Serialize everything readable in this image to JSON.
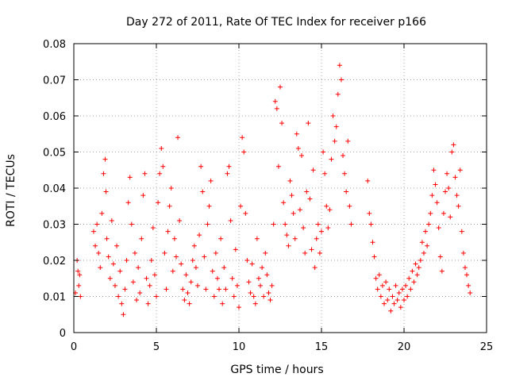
{
  "chart_data": {
    "type": "scatter",
    "title": "Day 272 of 2011, Rate Of TEC Index for receiver p166",
    "xlabel": "GPS time / hours",
    "ylabel": "ROTI / TECUs",
    "xlim": [
      0,
      25
    ],
    "ylim": [
      0,
      0.08
    ],
    "xticks": [
      "0",
      "5",
      "10",
      "15",
      "20",
      "25"
    ],
    "yticks": [
      "0",
      "0.01",
      "0.02",
      "0.03",
      "0.04",
      "0.05",
      "0.06",
      "0.07",
      "0.08"
    ],
    "grid": true,
    "marker": "+",
    "color": "#ff0000",
    "series": [
      {
        "points": [
          [
            0.1,
            0.011
          ],
          [
            0.2,
            0.02
          ],
          [
            0.25,
            0.017
          ],
          [
            0.3,
            0.013
          ],
          [
            0.35,
            0.016
          ],
          [
            0.4,
            0.01
          ],
          [
            1.2,
            0.028
          ],
          [
            1.3,
            0.024
          ],
          [
            1.4,
            0.03
          ],
          [
            1.5,
            0.022
          ],
          [
            1.6,
            0.018
          ],
          [
            1.7,
            0.033
          ],
          [
            1.8,
            0.044
          ],
          [
            1.9,
            0.048
          ],
          [
            1.95,
            0.039
          ],
          [
            2.0,
            0.026
          ],
          [
            2.1,
            0.021
          ],
          [
            2.2,
            0.015
          ],
          [
            2.3,
            0.031
          ],
          [
            2.4,
            0.019
          ],
          [
            2.5,
            0.013
          ],
          [
            2.6,
            0.024
          ],
          [
            2.7,
            0.01
          ],
          [
            2.8,
            0.017
          ],
          [
            2.9,
            0.008
          ],
          [
            3.0,
            0.005
          ],
          [
            3.1,
            0.012
          ],
          [
            3.2,
            0.02
          ],
          [
            3.3,
            0.036
          ],
          [
            3.4,
            0.043
          ],
          [
            3.5,
            0.03
          ],
          [
            3.6,
            0.014
          ],
          [
            3.7,
            0.022
          ],
          [
            3.8,
            0.009
          ],
          [
            3.9,
            0.018
          ],
          [
            4.0,
            0.011
          ],
          [
            4.1,
            0.026
          ],
          [
            4.2,
            0.038
          ],
          [
            4.3,
            0.044
          ],
          [
            4.4,
            0.015
          ],
          [
            4.5,
            0.008
          ],
          [
            4.6,
            0.013
          ],
          [
            4.7,
            0.02
          ],
          [
            4.8,
            0.029
          ],
          [
            4.9,
            0.016
          ],
          [
            5.0,
            0.01
          ],
          [
            5.1,
            0.036
          ],
          [
            5.2,
            0.044
          ],
          [
            5.3,
            0.051
          ],
          [
            5.4,
            0.046
          ],
          [
            5.5,
            0.022
          ],
          [
            5.6,
            0.012
          ],
          [
            5.7,
            0.028
          ],
          [
            5.8,
            0.035
          ],
          [
            5.9,
            0.04
          ],
          [
            6.0,
            0.017
          ],
          [
            6.1,
            0.026
          ],
          [
            6.2,
            0.021
          ],
          [
            6.3,
            0.054
          ],
          [
            6.4,
            0.031
          ],
          [
            6.5,
            0.019
          ],
          [
            6.6,
            0.012
          ],
          [
            6.7,
            0.009
          ],
          [
            6.8,
            0.016
          ],
          [
            6.9,
            0.011
          ],
          [
            7.0,
            0.008
          ],
          [
            7.1,
            0.014
          ],
          [
            7.2,
            0.02
          ],
          [
            7.3,
            0.024
          ],
          [
            7.4,
            0.018
          ],
          [
            7.5,
            0.013
          ],
          [
            7.6,
            0.027
          ],
          [
            7.7,
            0.046
          ],
          [
            7.8,
            0.039
          ],
          [
            7.9,
            0.021
          ],
          [
            8.0,
            0.012
          ],
          [
            8.1,
            0.03
          ],
          [
            8.2,
            0.035
          ],
          [
            8.3,
            0.042
          ],
          [
            8.4,
            0.017
          ],
          [
            8.5,
            0.01
          ],
          [
            8.6,
            0.022
          ],
          [
            8.7,
            0.015
          ],
          [
            8.8,
            0.012
          ],
          [
            8.9,
            0.026
          ],
          [
            9.0,
            0.008
          ],
          [
            9.1,
            0.018
          ],
          [
            9.2,
            0.012
          ],
          [
            9.3,
            0.044
          ],
          [
            9.4,
            0.046
          ],
          [
            9.5,
            0.031
          ],
          [
            9.6,
            0.015
          ],
          [
            9.7,
            0.01
          ],
          [
            9.8,
            0.023
          ],
          [
            9.9,
            0.013
          ],
          [
            10.0,
            0.007
          ],
          [
            10.1,
            0.035
          ],
          [
            10.2,
            0.054
          ],
          [
            10.3,
            0.05
          ],
          [
            10.4,
            0.033
          ],
          [
            10.5,
            0.02
          ],
          [
            10.6,
            0.014
          ],
          [
            10.7,
            0.011
          ],
          [
            10.8,
            0.019
          ],
          [
            10.9,
            0.01
          ],
          [
            11.0,
            0.008
          ],
          [
            11.1,
            0.026
          ],
          [
            11.2,
            0.015
          ],
          [
            11.3,
            0.013
          ],
          [
            11.4,
            0.018
          ],
          [
            11.5,
            0.01
          ],
          [
            11.6,
            0.022
          ],
          [
            11.7,
            0.016
          ],
          [
            11.8,
            0.011
          ],
          [
            11.9,
            0.009
          ],
          [
            12.0,
            0.013
          ],
          [
            12.1,
            0.03
          ],
          [
            12.2,
            0.064
          ],
          [
            12.3,
            0.062
          ],
          [
            12.4,
            0.046
          ],
          [
            12.5,
            0.068
          ],
          [
            12.6,
            0.058
          ],
          [
            12.7,
            0.036
          ],
          [
            12.8,
            0.03
          ],
          [
            12.9,
            0.027
          ],
          [
            13.0,
            0.024
          ],
          [
            13.1,
            0.042
          ],
          [
            13.2,
            0.038
          ],
          [
            13.3,
            0.033
          ],
          [
            13.4,
            0.026
          ],
          [
            13.5,
            0.055
          ],
          [
            13.6,
            0.051
          ],
          [
            13.7,
            0.034
          ],
          [
            13.8,
            0.049
          ],
          [
            13.9,
            0.029
          ],
          [
            14.0,
            0.022
          ],
          [
            14.1,
            0.039
          ],
          [
            14.2,
            0.058
          ],
          [
            14.3,
            0.037
          ],
          [
            14.4,
            0.023
          ],
          [
            14.5,
            0.045
          ],
          [
            14.6,
            0.018
          ],
          [
            14.7,
            0.026
          ],
          [
            14.8,
            0.03
          ],
          [
            14.9,
            0.022
          ],
          [
            15.0,
            0.028
          ],
          [
            15.1,
            0.05
          ],
          [
            15.2,
            0.044
          ],
          [
            15.3,
            0.035
          ],
          [
            15.4,
            0.029
          ],
          [
            15.5,
            0.034
          ],
          [
            15.6,
            0.048
          ],
          [
            15.7,
            0.06
          ],
          [
            15.8,
            0.053
          ],
          [
            15.9,
            0.057
          ],
          [
            16.0,
            0.066
          ],
          [
            16.1,
            0.074
          ],
          [
            16.2,
            0.07
          ],
          [
            16.3,
            0.049
          ],
          [
            16.4,
            0.044
          ],
          [
            16.5,
            0.039
          ],
          [
            16.6,
            0.053
          ],
          [
            16.7,
            0.035
          ],
          [
            16.8,
            0.03
          ],
          [
            17.8,
            0.042
          ],
          [
            17.9,
            0.033
          ],
          [
            18.0,
            0.03
          ],
          [
            18.1,
            0.025
          ],
          [
            18.2,
            0.021
          ],
          [
            18.3,
            0.015
          ],
          [
            18.4,
            0.012
          ],
          [
            18.5,
            0.016
          ],
          [
            18.6,
            0.01
          ],
          [
            18.7,
            0.013
          ],
          [
            18.8,
            0.008
          ],
          [
            18.9,
            0.014
          ],
          [
            19.0,
            0.009
          ],
          [
            19.1,
            0.012
          ],
          [
            19.2,
            0.006
          ],
          [
            19.3,
            0.01
          ],
          [
            19.4,
            0.008
          ],
          [
            19.5,
            0.013
          ],
          [
            19.6,
            0.009
          ],
          [
            19.7,
            0.011
          ],
          [
            19.8,
            0.007
          ],
          [
            19.9,
            0.012
          ],
          [
            20.0,
            0.009
          ],
          [
            20.1,
            0.013
          ],
          [
            20.2,
            0.01
          ],
          [
            20.3,
            0.015
          ],
          [
            20.4,
            0.012
          ],
          [
            20.5,
            0.017
          ],
          [
            20.6,
            0.014
          ],
          [
            20.7,
            0.019
          ],
          [
            20.8,
            0.016
          ],
          [
            20.9,
            0.018
          ],
          [
            21.0,
            0.02
          ],
          [
            21.1,
            0.025
          ],
          [
            21.2,
            0.022
          ],
          [
            21.3,
            0.028
          ],
          [
            21.4,
            0.024
          ],
          [
            21.5,
            0.03
          ],
          [
            21.6,
            0.033
          ],
          [
            21.7,
            0.038
          ],
          [
            21.8,
            0.045
          ],
          [
            21.9,
            0.041
          ],
          [
            22.0,
            0.036
          ],
          [
            22.1,
            0.029
          ],
          [
            22.2,
            0.021
          ],
          [
            22.3,
            0.017
          ],
          [
            22.4,
            0.033
          ],
          [
            22.5,
            0.039
          ],
          [
            22.6,
            0.044
          ],
          [
            22.7,
            0.04
          ],
          [
            22.8,
            0.032
          ],
          [
            22.9,
            0.05
          ],
          [
            23.0,
            0.052
          ],
          [
            23.1,
            0.043
          ],
          [
            23.2,
            0.038
          ],
          [
            23.3,
            0.035
          ],
          [
            23.4,
            0.045
          ],
          [
            23.5,
            0.028
          ],
          [
            23.6,
            0.022
          ],
          [
            23.7,
            0.018
          ],
          [
            23.8,
            0.016
          ],
          [
            23.9,
            0.013
          ],
          [
            24.0,
            0.011
          ]
        ]
      }
    ]
  }
}
